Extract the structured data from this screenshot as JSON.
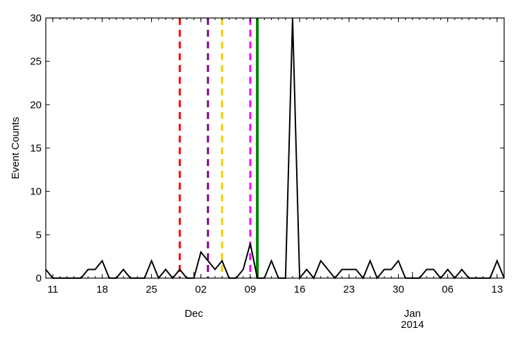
{
  "chart_data": {
    "type": "line",
    "title": "",
    "xlabel": "",
    "ylabel": "Event Counts",
    "xlim": [
      "2013-11-10",
      "2014-01-14"
    ],
    "ylim": [
      0,
      30
    ],
    "grid": false,
    "yticks": [
      0,
      5,
      10,
      15,
      20,
      25,
      30
    ],
    "ytick_labels": [
      "0",
      "5",
      "10",
      "15",
      "20",
      "25",
      "30"
    ],
    "xticks": [
      {
        "date": "2013-11-11",
        "label": "11"
      },
      {
        "date": "2013-11-18",
        "label": "18"
      },
      {
        "date": "2013-11-25",
        "label": "25"
      },
      {
        "date": "2013-12-02",
        "label": "02"
      },
      {
        "date": "2013-12-09",
        "label": "09"
      },
      {
        "date": "2013-12-16",
        "label": "16"
      },
      {
        "date": "2013-12-23",
        "label": "23"
      },
      {
        "date": "2013-12-30",
        "label": "30"
      },
      {
        "date": "2014-01-06",
        "label": "06"
      },
      {
        "date": "2014-01-13",
        "label": "13"
      }
    ],
    "month_labels": [
      {
        "date": "2013-12-01",
        "label": "Dec"
      },
      {
        "date": "2014-01-01",
        "label": "Jan",
        "year": "2014"
      }
    ],
    "series": [
      {
        "color": "#000000",
        "x": [
          "2013-11-10",
          "2013-11-11",
          "2013-11-12",
          "2013-11-13",
          "2013-11-14",
          "2013-11-15",
          "2013-11-16",
          "2013-11-17",
          "2013-11-18",
          "2013-11-19",
          "2013-11-20",
          "2013-11-21",
          "2013-11-22",
          "2013-11-23",
          "2013-11-24",
          "2013-11-25",
          "2013-11-26",
          "2013-11-27",
          "2013-11-28",
          "2013-11-29",
          "2013-11-30",
          "2013-12-01",
          "2013-12-02",
          "2013-12-03",
          "2013-12-04",
          "2013-12-05",
          "2013-12-06",
          "2013-12-07",
          "2013-12-08",
          "2013-12-09",
          "2013-12-10",
          "2013-12-11",
          "2013-12-12",
          "2013-12-13",
          "2013-12-14",
          "2013-12-15",
          "2013-12-16",
          "2013-12-17",
          "2013-12-18",
          "2013-12-19",
          "2013-12-20",
          "2013-12-21",
          "2013-12-22",
          "2013-12-23",
          "2013-12-24",
          "2013-12-25",
          "2013-12-26",
          "2013-12-27",
          "2013-12-28",
          "2013-12-29",
          "2013-12-30",
          "2013-12-31",
          "2014-01-01",
          "2014-01-02",
          "2014-01-03",
          "2014-01-04",
          "2014-01-05",
          "2014-01-06",
          "2014-01-07",
          "2014-01-08",
          "2014-01-09",
          "2014-01-10",
          "2014-01-11",
          "2014-01-12",
          "2014-01-13",
          "2014-01-14"
        ],
        "y": [
          1,
          0,
          0,
          0,
          0,
          0,
          1,
          1,
          2,
          0,
          0,
          1,
          0,
          0,
          0,
          2,
          0,
          1,
          0,
          1,
          0,
          0,
          3,
          2,
          1,
          2,
          0,
          0,
          1,
          4,
          0,
          0,
          2,
          0,
          0,
          30,
          0,
          1,
          0,
          2,
          1,
          0,
          1,
          1,
          1,
          0,
          2,
          0,
          1,
          1,
          2,
          0,
          0,
          0,
          1,
          1,
          0,
          1,
          0,
          1,
          0,
          0,
          0,
          0,
          2,
          0
        ]
      }
    ],
    "vertical_lines": [
      {
        "date": "2013-11-29",
        "color": "#ff0000",
        "style": "dashed"
      },
      {
        "date": "2013-12-03",
        "color": "#800080",
        "style": "dashed"
      },
      {
        "date": "2013-12-05",
        "color": "#f0d000",
        "style": "dashed"
      },
      {
        "date": "2013-12-09",
        "color": "#ff00ff",
        "style": "dashed"
      },
      {
        "date": "2013-12-10",
        "color": "#008000",
        "style": "solid"
      }
    ]
  }
}
